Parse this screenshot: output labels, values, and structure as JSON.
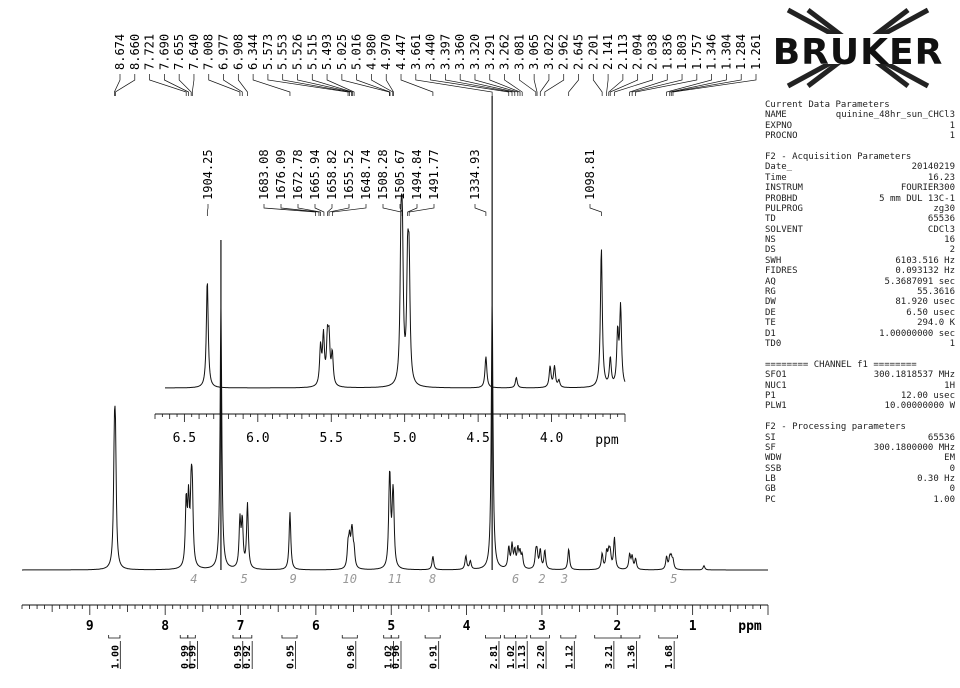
{
  "logo": {
    "text": "BRUKER"
  },
  "chart_data": [
    {
      "type": "line",
      "name": "main-spectrum",
      "xlabel": "ppm",
      "xlim": [
        9.9,
        0.0
      ],
      "reversed_x": true,
      "x_ticks": [
        9,
        8,
        7,
        6,
        5,
        4,
        3,
        2,
        1
      ],
      "peak_labels": [
        "8.674",
        "8.660",
        "7.721",
        "7.690",
        "7.655",
        "7.640",
        "7.008",
        "6.977",
        "6.908",
        "6.344",
        "5.573",
        "5.553",
        "5.526",
        "5.515",
        "5.493",
        "5.025",
        "5.016",
        "4.980",
        "4.970",
        "4.447",
        "3.661",
        "3.440",
        "3.397",
        "3.360",
        "3.320",
        "3.291",
        "3.262",
        "3.081",
        "3.065",
        "3.022",
        "2.962",
        "2.645",
        "2.201",
        "2.141",
        "2.113",
        "2.094",
        "2.038",
        "1.836",
        "1.803",
        "1.757",
        "1.346",
        "1.304",
        "1.284",
        "1.261"
      ],
      "integrals": [
        {
          "start": 8.75,
          "end": 8.6,
          "value": "1.00"
        },
        {
          "start": 7.8,
          "end": 7.7,
          "value": "0.99"
        },
        {
          "start": 7.7,
          "end": 7.6,
          "value": "0.99"
        },
        {
          "start": 7.1,
          "end": 7.0,
          "value": "0.95"
        },
        {
          "start": 7.0,
          "end": 6.85,
          "value": "0.92"
        },
        {
          "start": 6.45,
          "end": 6.25,
          "value": "0.95"
        },
        {
          "start": 5.65,
          "end": 5.45,
          "value": "0.96"
        },
        {
          "start": 5.1,
          "end": 5.0,
          "value": "1.02"
        },
        {
          "start": 5.0,
          "end": 4.9,
          "value": "0.96"
        },
        {
          "start": 4.55,
          "end": 4.35,
          "value": "0.91"
        },
        {
          "start": 3.75,
          "end": 3.55,
          "value": "2.81"
        },
        {
          "start": 3.5,
          "end": 3.35,
          "value": "1.02"
        },
        {
          "start": 3.35,
          "end": 3.2,
          "value": "1.13"
        },
        {
          "start": 3.15,
          "end": 2.9,
          "value": "2.20"
        },
        {
          "start": 2.75,
          "end": 2.55,
          "value": "1.12"
        },
        {
          "start": 2.3,
          "end": 1.95,
          "value": "3.21"
        },
        {
          "start": 1.95,
          "end": 1.7,
          "value": "1.36"
        },
        {
          "start": 1.45,
          "end": 1.2,
          "value": "1.68"
        }
      ],
      "handwritten_labels": [
        "4",
        "5",
        "9",
        "10",
        "11",
        "8",
        "6",
        "2",
        "3",
        "5"
      ],
      "peaks": [
        {
          "ppm": 8.674,
          "h": 1.0
        },
        {
          "ppm": 8.66,
          "h": 1.0
        },
        {
          "ppm": 7.721,
          "h": 0.62
        },
        {
          "ppm": 7.69,
          "h": 0.6
        },
        {
          "ppm": 7.655,
          "h": 0.62
        },
        {
          "ppm": 7.64,
          "h": 0.6
        },
        {
          "ppm": 7.26,
          "h": 2.5
        },
        {
          "ppm": 7.008,
          "h": 0.45
        },
        {
          "ppm": 6.977,
          "h": 0.44
        },
        {
          "ppm": 6.908,
          "h": 0.62
        },
        {
          "ppm": 6.344,
          "h": 0.55
        },
        {
          "ppm": 5.573,
          "h": 0.2
        },
        {
          "ppm": 5.553,
          "h": 0.25
        },
        {
          "ppm": 5.526,
          "h": 0.22
        },
        {
          "ppm": 5.515,
          "h": 0.2
        },
        {
          "ppm": 5.493,
          "h": 0.15
        },
        {
          "ppm": 5.025,
          "h": 0.5
        },
        {
          "ppm": 5.016,
          "h": 0.5
        },
        {
          "ppm": 4.98,
          "h": 0.42
        },
        {
          "ppm": 4.97,
          "h": 0.42
        },
        {
          "ppm": 4.447,
          "h": 0.13
        },
        {
          "ppm": 4.01,
          "h": 0.13
        },
        {
          "ppm": 3.95,
          "h": 0.08
        },
        {
          "ppm": 3.661,
          "h": 2.55
        },
        {
          "ppm": 3.44,
          "h": 0.2
        },
        {
          "ppm": 3.397,
          "h": 0.22
        },
        {
          "ppm": 3.36,
          "h": 0.16
        },
        {
          "ppm": 3.32,
          "h": 0.18
        },
        {
          "ppm": 3.291,
          "h": 0.14
        },
        {
          "ppm": 3.262,
          "h": 0.12
        },
        {
          "ppm": 3.081,
          "h": 0.14
        },
        {
          "ppm": 3.065,
          "h": 0.14
        },
        {
          "ppm": 3.022,
          "h": 0.18
        },
        {
          "ppm": 2.962,
          "h": 0.18
        },
        {
          "ppm": 2.645,
          "h": 0.2
        },
        {
          "ppm": 2.201,
          "h": 0.15
        },
        {
          "ppm": 2.141,
          "h": 0.16
        },
        {
          "ppm": 2.113,
          "h": 0.14
        },
        {
          "ppm": 2.094,
          "h": 0.14
        },
        {
          "ppm": 2.038,
          "h": 0.3
        },
        {
          "ppm": 1.836,
          "h": 0.14
        },
        {
          "ppm": 1.803,
          "h": 0.12
        },
        {
          "ppm": 1.757,
          "h": 0.1
        },
        {
          "ppm": 1.346,
          "h": 0.12
        },
        {
          "ppm": 1.304,
          "h": 0.1
        },
        {
          "ppm": 1.284,
          "h": 0.1
        },
        {
          "ppm": 1.261,
          "h": 0.08
        },
        {
          "ppm": 0.85,
          "h": 0.04
        }
      ]
    },
    {
      "type": "line",
      "name": "inset-spectrum",
      "xlabel": "ppm",
      "xlim": [
        6.7,
        3.5
      ],
      "reversed_x": true,
      "x_ticks": [
        6.5,
        6.0,
        5.5,
        5.0,
        4.5,
        4.0
      ],
      "peak_labels": [
        "1904.25",
        "1683.08",
        "1676.09",
        "1672.78",
        "1665.94",
        "1658.82",
        "1655.52",
        "1648.74",
        "1508.28",
        "1505.67",
        "1494.84",
        "1491.77",
        "1334.93",
        "1098.81"
      ],
      "peaks": [
        {
          "ppm": 6.344,
          "h": 0.62
        },
        {
          "ppm": 5.573,
          "h": 0.22
        },
        {
          "ppm": 5.553,
          "h": 0.28
        },
        {
          "ppm": 5.526,
          "h": 0.25
        },
        {
          "ppm": 5.515,
          "h": 0.24
        },
        {
          "ppm": 5.493,
          "h": 0.18
        },
        {
          "ppm": 5.025,
          "h": 0.74
        },
        {
          "ppm": 5.016,
          "h": 0.72
        },
        {
          "ppm": 4.98,
          "h": 0.62
        },
        {
          "ppm": 4.97,
          "h": 0.62
        },
        {
          "ppm": 4.447,
          "h": 0.18
        },
        {
          "ppm": 4.24,
          "h": 0.06
        },
        {
          "ppm": 4.01,
          "h": 0.12
        },
        {
          "ppm": 3.98,
          "h": 0.12
        },
        {
          "ppm": 3.95,
          "h": 0.04
        },
        {
          "ppm": 3.661,
          "h": 0.8
        },
        {
          "ppm": 3.6,
          "h": 0.16
        },
        {
          "ppm": 3.55,
          "h": 0.3
        },
        {
          "ppm": 3.53,
          "h": 0.45
        }
      ]
    }
  ],
  "params": {
    "lines": [
      {
        "k": "Current Data Parameters",
        "v": ""
      },
      {
        "k": "NAME",
        "v": "quinine_48hr_sun_CHCl3"
      },
      {
        "k": "EXPNO",
        "v": "1"
      },
      {
        "k": "PROCNO",
        "v": "1"
      },
      {
        "k": "",
        "v": ""
      },
      {
        "k": "F2 - Acquisition Parameters",
        "v": ""
      },
      {
        "k": "Date_",
        "v": "20140219"
      },
      {
        "k": "Time",
        "v": "16.23"
      },
      {
        "k": "INSTRUM",
        "v": "FOURIER300"
      },
      {
        "k": "PROBHD",
        "v": "5 mm DUL 13C-1"
      },
      {
        "k": "PULPROG",
        "v": "zg30"
      },
      {
        "k": "TD",
        "v": "65536"
      },
      {
        "k": "SOLVENT",
        "v": "CDCl3"
      },
      {
        "k": "NS",
        "v": "16"
      },
      {
        "k": "DS",
        "v": "2"
      },
      {
        "k": "SWH",
        "v": "6103.516 Hz"
      },
      {
        "k": "FIDRES",
        "v": "0.093132 Hz"
      },
      {
        "k": "AQ",
        "v": "5.3687091 sec"
      },
      {
        "k": "RG",
        "v": "55.3616"
      },
      {
        "k": "DW",
        "v": "81.920 usec"
      },
      {
        "k": "DE",
        "v": "6.50 usec"
      },
      {
        "k": "TE",
        "v": "294.0 K"
      },
      {
        "k": "D1",
        "v": "1.00000000 sec"
      },
      {
        "k": "TD0",
        "v": "1"
      },
      {
        "k": "",
        "v": ""
      },
      {
        "k": "======== CHANNEL f1 ========",
        "v": ""
      },
      {
        "k": "SFO1",
        "v": "300.1818537 MHz"
      },
      {
        "k": "NUC1",
        "v": "1H"
      },
      {
        "k": "P1",
        "v": "12.00 usec"
      },
      {
        "k": "PLW1",
        "v": "10.00000000 W"
      },
      {
        "k": "",
        "v": ""
      },
      {
        "k": "F2 - Processing parameters",
        "v": ""
      },
      {
        "k": "SI",
        "v": "65536"
      },
      {
        "k": "SF",
        "v": "300.1800000 MHz"
      },
      {
        "k": "WDW",
        "v": "EM"
      },
      {
        "k": "SSB",
        "v": "0"
      },
      {
        "k": "LB",
        "v": "0.30 Hz"
      },
      {
        "k": "GB",
        "v": "0"
      },
      {
        "k": "PC",
        "v": "1.00"
      }
    ]
  }
}
